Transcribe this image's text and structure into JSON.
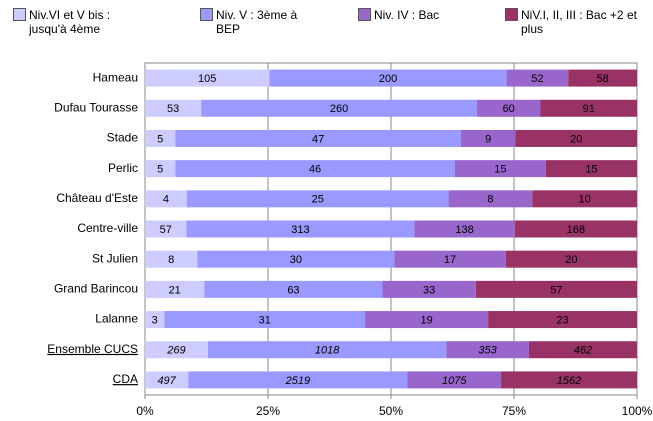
{
  "chart_data": {
    "type": "bar",
    "orientation": "horizontal",
    "stacking": "percent",
    "categories": [
      "Hameau",
      "Dufau Tourasse",
      "Stade",
      "Perlic",
      "Château d'Este",
      "Centre-ville",
      "St Julien",
      "Grand Barincou",
      "Lalanne",
      "Ensemble CUCS",
      "CDA"
    ],
    "highlight_categories": [
      9,
      10
    ],
    "series": [
      {
        "name": "Niv.VI et V bis : jusqu'à 4ème",
        "color": "#ccccff",
        "values": [
          105,
          53,
          5,
          5,
          4,
          57,
          8,
          21,
          3,
          269,
          497
        ]
      },
      {
        "name": "Niv. V : 3ème à BEP",
        "color": "#9999ff",
        "values": [
          200,
          260,
          47,
          46,
          25,
          313,
          30,
          63,
          31,
          1018,
          2519
        ]
      },
      {
        "name": "Niv. IV : Bac",
        "color": "#9966cc",
        "values": [
          52,
          60,
          9,
          15,
          8,
          138,
          17,
          33,
          19,
          353,
          1075
        ]
      },
      {
        "name": "NiV.I, II, III : Bac +2 et plus",
        "color": "#993366",
        "values": [
          58,
          91,
          20,
          15,
          10,
          168,
          20,
          57,
          23,
          462,
          1562
        ]
      }
    ],
    "xlim": [
      0,
      100
    ],
    "xticks": [
      {
        "value": 0,
        "label": "0%"
      },
      {
        "value": 25,
        "label": "25%"
      },
      {
        "value": 50,
        "label": "50%"
      },
      {
        "value": 75,
        "label": "75%"
      },
      {
        "value": 100,
        "label": "100%"
      }
    ],
    "grid": true,
    "legend": "top"
  }
}
